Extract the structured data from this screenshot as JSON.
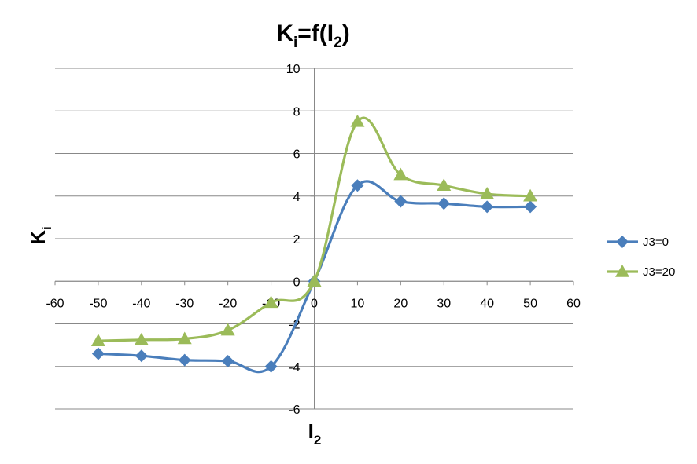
{
  "chart_data": {
    "type": "line",
    "title": {
      "main": "K",
      "sub": "i",
      "mid": "=f(I",
      "sub2": "2",
      "end": ")"
    },
    "xlabel": {
      "main": "I",
      "sub": "2"
    },
    "ylabel": {
      "main": "K",
      "sub": "i"
    },
    "xlim": [
      -60,
      60
    ],
    "ylim": [
      -6,
      10
    ],
    "xticks": [
      -60,
      -50,
      -40,
      -30,
      -20,
      -10,
      0,
      10,
      20,
      30,
      40,
      50,
      60
    ],
    "yticks": [
      -6,
      -4,
      -2,
      0,
      2,
      4,
      6,
      8,
      10
    ],
    "grid": true,
    "legend_position": "right",
    "series": [
      {
        "name": "J3=0",
        "color": "#4a7ebb",
        "marker": "diamond",
        "x": [
          -50,
          -40,
          -30,
          -20,
          -10,
          0,
          10,
          20,
          30,
          40,
          50
        ],
        "y": [
          -3.4,
          -3.5,
          -3.7,
          -3.75,
          -4.0,
          0,
          4.5,
          3.75,
          3.65,
          3.5,
          3.5
        ]
      },
      {
        "name": "J3=20",
        "color": "#9bbb59",
        "marker": "triangle",
        "x": [
          -50,
          -40,
          -30,
          -20,
          -10,
          0,
          10,
          20,
          30,
          40,
          50
        ],
        "y": [
          -2.8,
          -2.75,
          -2.7,
          -2.3,
          -1.0,
          0,
          7.5,
          5.0,
          4.5,
          4.1,
          4.0
        ]
      }
    ]
  }
}
